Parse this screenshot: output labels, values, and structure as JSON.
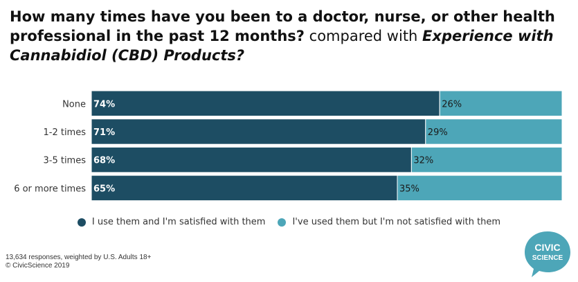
{
  "title": {
    "question": "How many times have you been to a doctor, nurse, or other health professional in the past 12 months?",
    "connector": "compared with",
    "variable": "Experience with Cannabidiol (CBD) Products?"
  },
  "chart_data": {
    "type": "bar",
    "orientation": "horizontal",
    "stacked": true,
    "percent": true,
    "categories": [
      "None",
      "1-2 times",
      "3-5 times",
      "6 or more times"
    ],
    "series": [
      {
        "name": "I use them and I'm satisfied with them",
        "color": "#1d4d63",
        "values": [
          74,
          71,
          68,
          65
        ],
        "labels": [
          "74%",
          "71%",
          "68%",
          "65%"
        ]
      },
      {
        "name": "I've used them but I'm not satisfied with them",
        "color": "#4da6b8",
        "values": [
          26,
          29,
          32,
          35
        ],
        "labels": [
          "26%",
          "29%",
          "32%",
          "35%"
        ]
      }
    ],
    "xlim": [
      0,
      100
    ],
    "grid": false,
    "legend": "bottom-center"
  },
  "footer": {
    "line1": "13,634 responses, weighted by U.S. Adults 18+",
    "line2": "© CivicScience 2019"
  },
  "logo": {
    "line1": "CIVIC",
    "line2": "SCIENCE",
    "color": "#4da6b8"
  }
}
